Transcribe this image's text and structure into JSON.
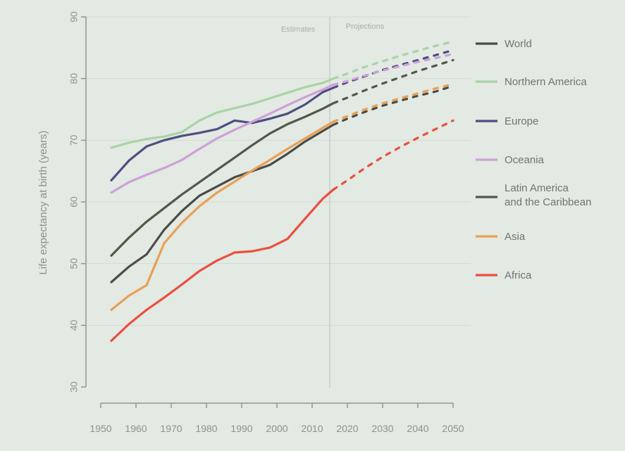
{
  "chart_data": {
    "type": "line",
    "title": "",
    "xlabel": "",
    "ylabel": "Life expectancy at birth (years)",
    "xlim": [
      1950,
      2050
    ],
    "ylim": [
      30,
      90
    ],
    "x_ticks": [
      1950,
      1960,
      1970,
      1980,
      1990,
      2000,
      2010,
      2020,
      2030,
      2040,
      2050
    ],
    "y_ticks": [
      30,
      40,
      50,
      60,
      70,
      80,
      90
    ],
    "grid": true,
    "legend_position": "right",
    "period_divider_x": 2015,
    "period_labels": [
      "Estimates",
      "Projections"
    ],
    "series": [
      {
        "name": "World",
        "color": "#4b4b47",
        "estimates": [
          [
            1953,
            47
          ],
          [
            1958,
            49.5
          ],
          [
            1963,
            51.5
          ],
          [
            1968,
            55.5
          ],
          [
            1973,
            58.5
          ],
          [
            1978,
            61
          ],
          [
            1983,
            62.5
          ],
          [
            1988,
            64
          ],
          [
            1993,
            65
          ],
          [
            1998,
            66
          ],
          [
            2003,
            67.8
          ],
          [
            2008,
            69.8
          ],
          [
            2013,
            71.5
          ],
          [
            2016,
            72.5
          ]
        ],
        "projections": [
          [
            2016,
            72.5
          ],
          [
            2020,
            73.5
          ],
          [
            2025,
            74.6
          ],
          [
            2030,
            75.6
          ],
          [
            2035,
            76.4
          ],
          [
            2040,
            77.2
          ],
          [
            2045,
            77.9
          ],
          [
            2050,
            78.8
          ]
        ]
      },
      {
        "name": "Northern America",
        "color": "#a9d3a6",
        "estimates": [
          [
            1953,
            68.8
          ],
          [
            1958,
            69.6
          ],
          [
            1963,
            70.2
          ],
          [
            1968,
            70.6
          ],
          [
            1973,
            71.3
          ],
          [
            1978,
            73.2
          ],
          [
            1983,
            74.5
          ],
          [
            1988,
            75.2
          ],
          [
            1993,
            75.9
          ],
          [
            1998,
            76.8
          ],
          [
            2003,
            77.7
          ],
          [
            2008,
            78.6
          ],
          [
            2013,
            79.3
          ],
          [
            2016,
            80
          ]
        ],
        "projections": [
          [
            2016,
            80
          ],
          [
            2020,
            80.8
          ],
          [
            2025,
            81.9
          ],
          [
            2030,
            82.8
          ],
          [
            2035,
            83.7
          ],
          [
            2040,
            84.5
          ],
          [
            2045,
            85.3
          ],
          [
            2050,
            86
          ]
        ]
      },
      {
        "name": "Europe",
        "color": "#4e4e80",
        "estimates": [
          [
            1953,
            63.5
          ],
          [
            1958,
            66.7
          ],
          [
            1963,
            69
          ],
          [
            1968,
            70
          ],
          [
            1973,
            70.7
          ],
          [
            1978,
            71.2
          ],
          [
            1983,
            71.8
          ],
          [
            1988,
            73.2
          ],
          [
            1993,
            72.8
          ],
          [
            1998,
            73.5
          ],
          [
            2003,
            74.3
          ],
          [
            2008,
            75.8
          ],
          [
            2013,
            77.8
          ],
          [
            2016,
            78.5
          ]
        ],
        "projections": [
          [
            2016,
            78.5
          ],
          [
            2020,
            79.4
          ],
          [
            2025,
            80.4
          ],
          [
            2030,
            81.4
          ],
          [
            2035,
            82.2
          ],
          [
            2040,
            83
          ],
          [
            2045,
            83.8
          ],
          [
            2050,
            84.6
          ]
        ]
      },
      {
        "name": "Oceania",
        "color": "#cfa0d9",
        "estimates": [
          [
            1953,
            61.5
          ],
          [
            1958,
            63.2
          ],
          [
            1963,
            64.4
          ],
          [
            1968,
            65.5
          ],
          [
            1973,
            66.8
          ],
          [
            1978,
            68.6
          ],
          [
            1983,
            70.3
          ],
          [
            1988,
            71.7
          ],
          [
            1993,
            73
          ],
          [
            1998,
            74.3
          ],
          [
            2003,
            75.7
          ],
          [
            2008,
            77
          ],
          [
            2013,
            78.2
          ],
          [
            2016,
            79
          ]
        ],
        "projections": [
          [
            2016,
            79
          ],
          [
            2020,
            79.6
          ],
          [
            2025,
            80.5
          ],
          [
            2030,
            81.3
          ],
          [
            2035,
            82
          ],
          [
            2040,
            82.7
          ],
          [
            2045,
            83.3
          ],
          [
            2050,
            84
          ]
        ]
      },
      {
        "name": "Latin America\nand the Caribbean",
        "color": "#4e5a48",
        "estimates": [
          [
            1953,
            51.3
          ],
          [
            1958,
            54.2
          ],
          [
            1963,
            56.8
          ],
          [
            1968,
            59
          ],
          [
            1973,
            61.2
          ],
          [
            1978,
            63.2
          ],
          [
            1983,
            65.2
          ],
          [
            1988,
            67.2
          ],
          [
            1993,
            69.2
          ],
          [
            1998,
            71.1
          ],
          [
            2003,
            72.6
          ],
          [
            2008,
            73.8
          ],
          [
            2013,
            75.1
          ],
          [
            2016,
            76
          ]
        ],
        "projections": [
          [
            2016,
            76
          ],
          [
            2020,
            76.9
          ],
          [
            2025,
            78.1
          ],
          [
            2030,
            79.2
          ],
          [
            2035,
            80.2
          ],
          [
            2040,
            81.2
          ],
          [
            2045,
            82.1
          ],
          [
            2050,
            83
          ]
        ]
      },
      {
        "name": "Asia",
        "color": "#eaa052",
        "estimates": [
          [
            1953,
            42.5
          ],
          [
            1958,
            44.8
          ],
          [
            1963,
            46.5
          ],
          [
            1968,
            53.3
          ],
          [
            1973,
            56.6
          ],
          [
            1978,
            59.3
          ],
          [
            1983,
            61.5
          ],
          [
            1988,
            63.3
          ],
          [
            1993,
            65.1
          ],
          [
            1998,
            66.8
          ],
          [
            2003,
            68.6
          ],
          [
            2008,
            70.3
          ],
          [
            2013,
            72
          ],
          [
            2016,
            73
          ]
        ],
        "projections": [
          [
            2016,
            73
          ],
          [
            2020,
            73.9
          ],
          [
            2025,
            75
          ],
          [
            2030,
            76
          ],
          [
            2035,
            76.8
          ],
          [
            2040,
            77.6
          ],
          [
            2045,
            78.4
          ],
          [
            2050,
            79.1
          ]
        ]
      },
      {
        "name": "Africa",
        "color": "#ea4f41",
        "estimates": [
          [
            1953,
            37.5
          ],
          [
            1958,
            40.2
          ],
          [
            1963,
            42.5
          ],
          [
            1968,
            44.5
          ],
          [
            1973,
            46.6
          ],
          [
            1978,
            48.8
          ],
          [
            1983,
            50.5
          ],
          [
            1988,
            51.8
          ],
          [
            1993,
            52
          ],
          [
            1998,
            52.6
          ],
          [
            2003,
            54
          ],
          [
            2008,
            57.3
          ],
          [
            2013,
            60.5
          ],
          [
            2016,
            62
          ]
        ],
        "projections": [
          [
            2016,
            62
          ],
          [
            2020,
            63.5
          ],
          [
            2025,
            65.5
          ],
          [
            2030,
            67.3
          ],
          [
            2035,
            68.9
          ],
          [
            2040,
            70.4
          ],
          [
            2045,
            71.8
          ],
          [
            2050,
            73.2
          ]
        ]
      }
    ]
  }
}
